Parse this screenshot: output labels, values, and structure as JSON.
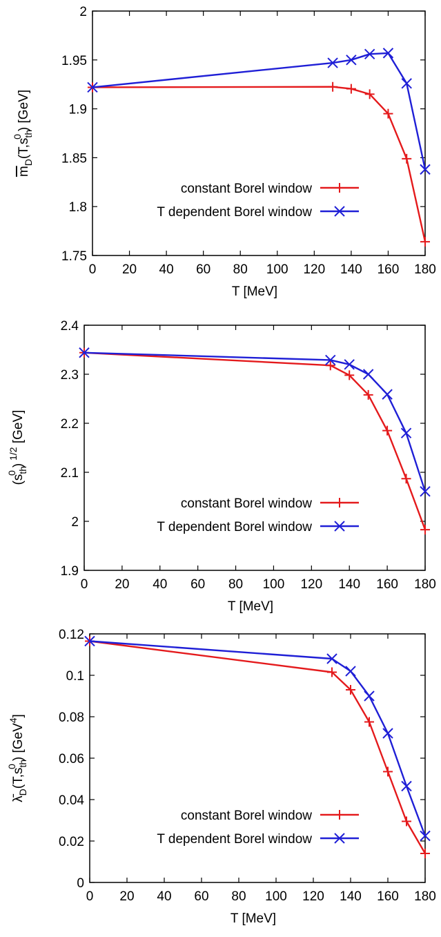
{
  "colors": {
    "constant": "#e41a1c",
    "tdep": "#1f1fd6",
    "axis": "#000000"
  },
  "chart_data": [
    {
      "type": "line",
      "xlabel": "T [MeV]",
      "ylabel": "m̄_D(T,s_th^0) [GeV]",
      "xlim": [
        0,
        180
      ],
      "ylim": [
        1.75,
        2.0
      ],
      "xticks": [
        "0",
        "20",
        "40",
        "60",
        "80",
        "100",
        "120",
        "140",
        "160",
        "180"
      ],
      "yticks": [
        "1.75",
        "1.8",
        "1.85",
        "1.9",
        "1.95",
        "2"
      ],
      "legend_position": "bottom-right",
      "grid": false,
      "series": [
        {
          "name": "constant Borel window",
          "marker": "plus",
          "color": "#e41a1c",
          "x": [
            0,
            130,
            140,
            150,
            160,
            170,
            180
          ],
          "y": [
            1.922,
            1.9225,
            1.9205,
            1.915,
            1.895,
            1.849,
            1.764
          ]
        },
        {
          "name": "T dependent Borel window",
          "marker": "cross",
          "color": "#1f1fd6",
          "x": [
            0,
            130,
            140,
            150,
            160,
            170,
            180
          ],
          "y": [
            1.922,
            1.947,
            1.95,
            1.956,
            1.957,
            1.926,
            1.838
          ]
        }
      ]
    },
    {
      "type": "line",
      "xlabel": "T [MeV]",
      "ylabel": "(s_th^0)^1/2 [GeV]",
      "xlim": [
        0,
        180
      ],
      "ylim": [
        1.9,
        2.4
      ],
      "xticks": [
        "0",
        "20",
        "40",
        "60",
        "80",
        "100",
        "120",
        "140",
        "160",
        "180"
      ],
      "yticks": [
        "1.9",
        "2",
        "2.1",
        "2.2",
        "2.3",
        "2.4"
      ],
      "legend_position": "bottom-right",
      "grid": false,
      "series": [
        {
          "name": "constant Borel window",
          "marker": "plus",
          "color": "#e41a1c",
          "x": [
            0,
            130,
            140,
            150,
            160,
            170,
            180
          ],
          "y": [
            2.344,
            2.318,
            2.298,
            2.258,
            2.185,
            2.087,
            1.983
          ]
        },
        {
          "name": "T dependent Borel window",
          "marker": "cross",
          "color": "#1f1fd6",
          "x": [
            0,
            130,
            140,
            150,
            160,
            170,
            180
          ],
          "y": [
            2.344,
            2.329,
            2.32,
            2.3,
            2.259,
            2.18,
            2.061
          ]
        }
      ]
    },
    {
      "type": "line",
      "xlabel": "T [MeV]",
      "ylabel": "λ̄_D(T,s_th^0) [GeV^4]",
      "xlim": [
        0,
        180
      ],
      "ylim": [
        0,
        0.12
      ],
      "xticks": [
        "0",
        "20",
        "40",
        "60",
        "80",
        "100",
        "120",
        "140",
        "160",
        "180"
      ],
      "yticks": [
        "0",
        "0.02",
        "0.04",
        "0.06",
        "0.08",
        "0.1",
        "0.12"
      ],
      "legend_position": "bottom-right",
      "grid": false,
      "series": [
        {
          "name": "constant Borel window",
          "marker": "plus",
          "color": "#e41a1c",
          "x": [
            0,
            130,
            140,
            150,
            160,
            170,
            180
          ],
          "y": [
            0.1165,
            0.1015,
            0.093,
            0.0775,
            0.0535,
            0.0295,
            0.014
          ]
        },
        {
          "name": "T dependent Borel window",
          "marker": "cross",
          "color": "#1f1fd6",
          "x": [
            0,
            130,
            140,
            150,
            160,
            170,
            180
          ],
          "y": [
            0.1165,
            0.108,
            0.102,
            0.09,
            0.072,
            0.0465,
            0.0225
          ]
        }
      ]
    }
  ]
}
